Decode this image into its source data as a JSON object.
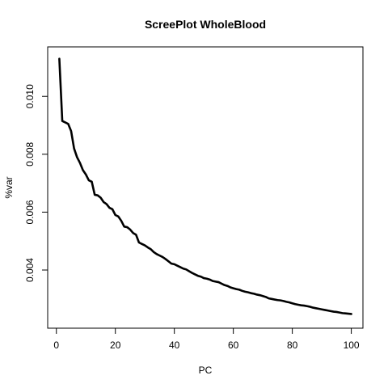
{
  "chart_data": {
    "type": "line",
    "title": "ScreePlot WholeBlood",
    "xlabel": "PC",
    "ylabel": "%var",
    "xlim": [
      1,
      100
    ],
    "ylim": [
      0.00235,
      0.01135
    ],
    "x_ticks": [
      0,
      20,
      40,
      60,
      80,
      100
    ],
    "x_tick_labels": [
      "0",
      "20",
      "40",
      "60",
      "80",
      "100"
    ],
    "y_ticks": [
      0.004,
      0.006,
      0.008,
      0.01
    ],
    "y_tick_labels": [
      "0.004",
      "0.006",
      "0.008",
      "0.010"
    ],
    "grid": false,
    "series": [
      {
        "x": [
          1,
          2,
          3,
          4,
          5,
          6,
          7,
          8,
          9,
          10,
          11,
          12,
          13,
          14,
          15,
          16,
          17,
          18,
          19,
          20,
          21,
          22,
          23,
          24,
          25,
          26,
          27,
          28,
          29,
          30,
          31,
          32,
          33,
          34,
          35,
          36,
          37,
          38,
          39,
          40,
          41,
          42,
          43,
          44,
          45,
          46,
          47,
          48,
          49,
          50,
          51,
          52,
          53,
          54,
          55,
          56,
          57,
          58,
          59,
          60,
          61,
          62,
          63,
          64,
          65,
          66,
          67,
          68,
          69,
          70,
          71,
          72,
          73,
          74,
          75,
          76,
          77,
          78,
          79,
          80,
          81,
          82,
          83,
          84,
          85,
          86,
          87,
          88,
          89,
          90,
          91,
          92,
          93,
          94,
          95,
          96,
          97,
          98,
          99,
          100
        ],
        "values": [
          0.0113,
          0.00915,
          0.0091,
          0.00905,
          0.0088,
          0.0082,
          0.0079,
          0.0077,
          0.00745,
          0.0073,
          0.0071,
          0.00705,
          0.0066,
          0.00658,
          0.0065,
          0.00635,
          0.00628,
          0.00615,
          0.0061,
          0.0059,
          0.00585,
          0.0057,
          0.0055,
          0.00548,
          0.0054,
          0.00528,
          0.00522,
          0.00495,
          0.0049,
          0.00485,
          0.00478,
          0.00472,
          0.00462,
          0.00455,
          0.0045,
          0.00445,
          0.00438,
          0.0043,
          0.00422,
          0.0042,
          0.00415,
          0.0041,
          0.00405,
          0.00402,
          0.00396,
          0.0039,
          0.00385,
          0.0038,
          0.00377,
          0.00372,
          0.0037,
          0.00367,
          0.00362,
          0.0036,
          0.00358,
          0.00353,
          0.00348,
          0.00345,
          0.0034,
          0.00337,
          0.00334,
          0.00332,
          0.00328,
          0.00325,
          0.00323,
          0.0032,
          0.00318,
          0.00315,
          0.00313,
          0.0031,
          0.00307,
          0.00302,
          0.003,
          0.00298,
          0.00296,
          0.00295,
          0.00293,
          0.0029,
          0.00288,
          0.00285,
          0.00282,
          0.0028,
          0.00278,
          0.00277,
          0.00275,
          0.00273,
          0.0027,
          0.00268,
          0.00266,
          0.00264,
          0.00262,
          0.0026,
          0.00258,
          0.00256,
          0.00255,
          0.00253,
          0.00251,
          0.0025,
          0.00249,
          0.00248
        ]
      }
    ]
  }
}
